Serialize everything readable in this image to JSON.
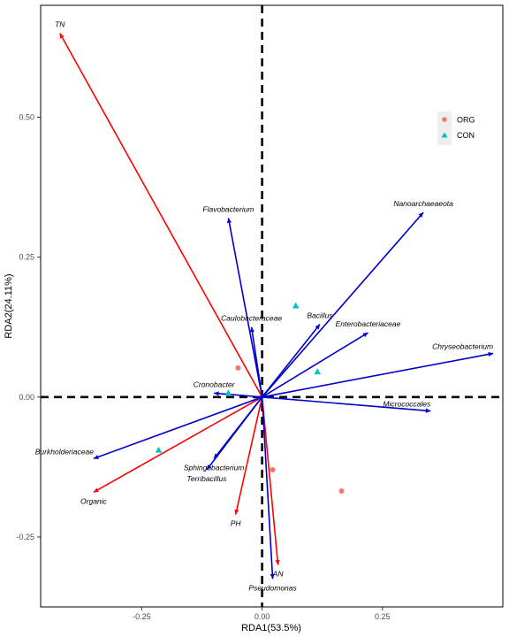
{
  "chart_data": {
    "type": "scatter",
    "title": "",
    "xlabel": "RDA1(53.5%)",
    "ylabel": "RDA2(24.11%)",
    "xlim": [
      -0.46,
      0.5
    ],
    "ylim": [
      -0.375,
      0.7
    ],
    "x_ticks": [
      -0.25,
      0,
      0.25
    ],
    "x_tick_labels": [
      "-0.25",
      "0.00",
      "0.25"
    ],
    "y_ticks": [
      -0.25,
      0,
      0.25,
      0.5
    ],
    "y_tick_labels": [
      "-0.25",
      "0.00",
      "0.25",
      "0.50"
    ],
    "grid": false,
    "legend_position": "top-right",
    "reference_lines": [
      {
        "axis": "x",
        "value": 0
      },
      {
        "axis": "y",
        "value": 0
      }
    ],
    "env_arrows": [
      {
        "label": "TN",
        "x": -0.42,
        "y": 0.65
      },
      {
        "label": "Organic",
        "x": -0.35,
        "y": -0.17
      },
      {
        "label": "PH",
        "x": -0.055,
        "y": -0.21
      },
      {
        "label": "AN",
        "x": 0.033,
        "y": -0.3
      }
    ],
    "species_arrows": [
      {
        "label": "Flavobacterium",
        "x": -0.07,
        "y": 0.32
      },
      {
        "label": "Caulobacteraceae",
        "x": -0.022,
        "y": 0.125
      },
      {
        "label": "Nanoarchaeaeota",
        "x": 0.335,
        "y": 0.33
      },
      {
        "label": "Bacillus",
        "x": 0.12,
        "y": 0.13
      },
      {
        "label": "Enterobacteriaceae",
        "x": 0.22,
        "y": 0.115
      },
      {
        "label": "Chryseobacterium",
        "x": 0.48,
        "y": 0.078
      },
      {
        "label": "Micrococcales",
        "x": 0.35,
        "y": -0.025
      },
      {
        "label": "Cronobacter",
        "x": -0.1,
        "y": 0.007
      },
      {
        "label": "Burkholderiaceae",
        "x": -0.35,
        "y": -0.11
      },
      {
        "label": "Sphingobacterium",
        "x": -0.1,
        "y": -0.11
      },
      {
        "label": "Terribacillus",
        "x": -0.115,
        "y": -0.13
      },
      {
        "label": "Pseudomonas",
        "x": 0.022,
        "y": -0.325
      }
    ],
    "series": [
      {
        "name": "ORG",
        "color": "#F8766D",
        "shape": "circle",
        "points": [
          [
            -0.05,
            0.052
          ],
          [
            0.022,
            -0.13
          ],
          [
            0.165,
            -0.168
          ]
        ]
      },
      {
        "name": "CON",
        "color": "#00BFC4",
        "shape": "triangle",
        "points": [
          [
            0.07,
            0.163
          ],
          [
            0.115,
            0.045
          ],
          [
            -0.07,
            0.007
          ],
          [
            -0.215,
            -0.095
          ]
        ]
      }
    ],
    "colors": {
      "env_arrow": "#FF0000",
      "species_arrow": "#0000CC",
      "reference_line": "#000000"
    }
  }
}
